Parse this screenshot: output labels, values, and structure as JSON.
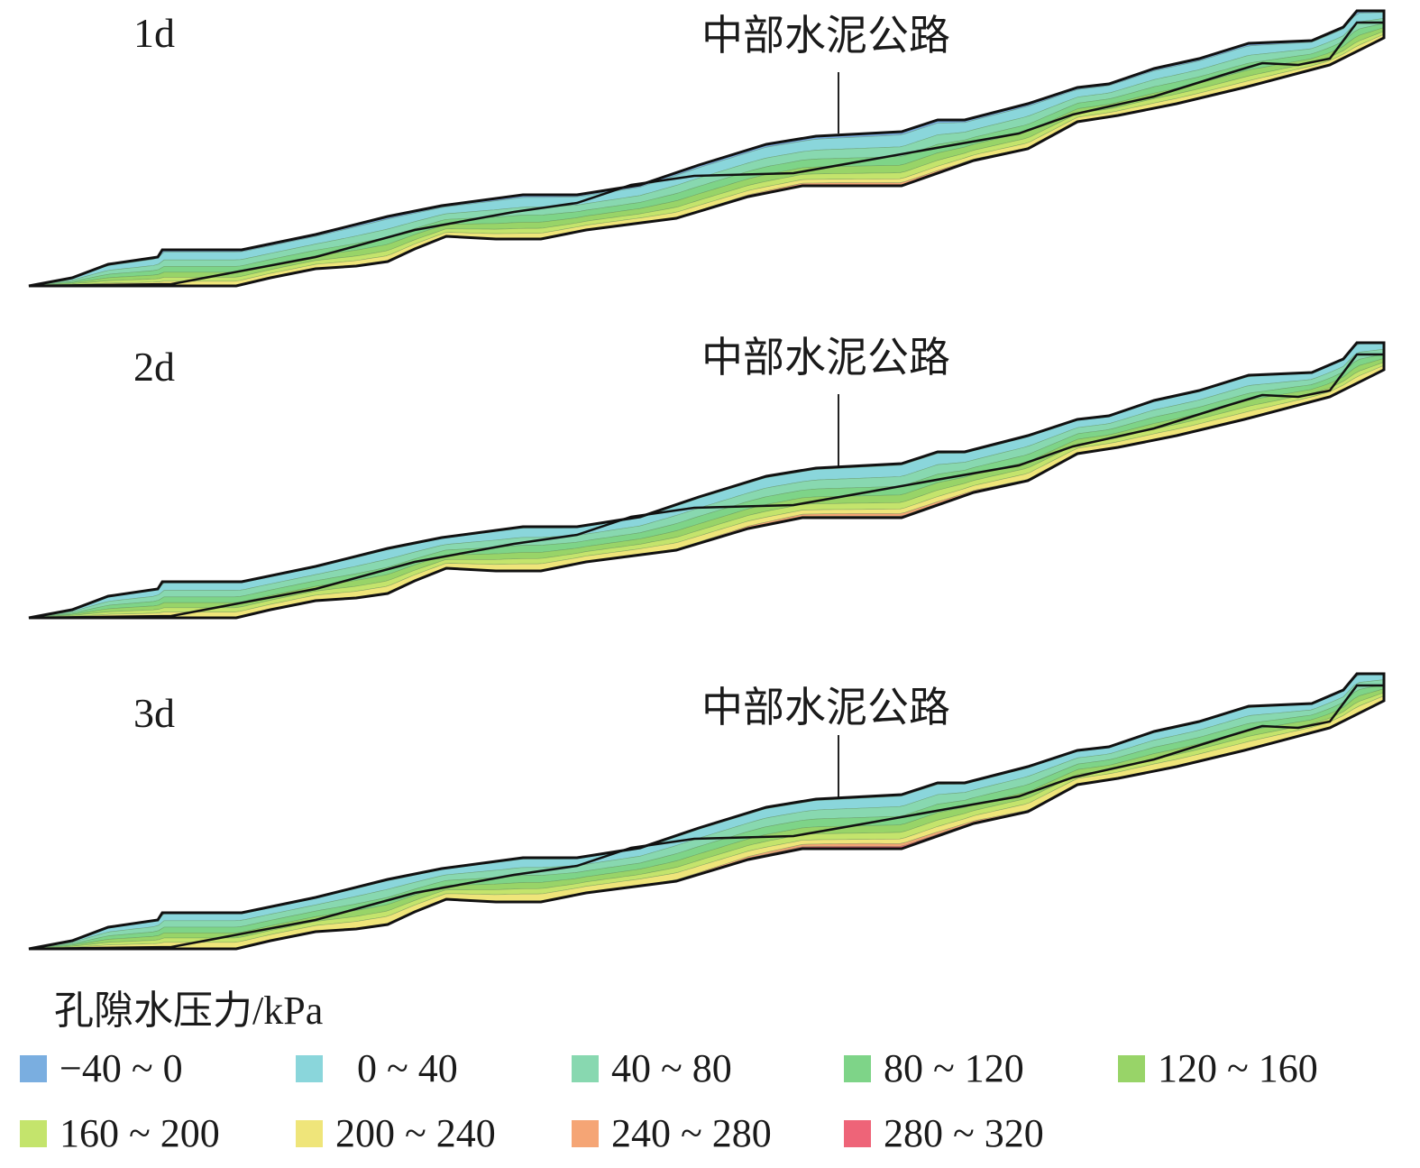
{
  "panels": [
    {
      "label": "1d",
      "road_label": "中部水泥公路"
    },
    {
      "label": "2d",
      "road_label": "中部水泥公路"
    },
    {
      "label": "3d",
      "road_label": "中部水泥公路"
    }
  ],
  "legend": {
    "title": "孔隙水压力/kPa",
    "items": [
      {
        "label": "−40 ~ 0",
        "color": "#7aaee0"
      },
      {
        "label": "0 ~ 40",
        "color": "#8ad6db"
      },
      {
        "label": "40 ~ 80",
        "color": "#88d8b0"
      },
      {
        "label": "80 ~ 120",
        "color": "#7ed488"
      },
      {
        "label": "120 ~ 160",
        "color": "#98d468"
      },
      {
        "label": "160 ~ 200",
        "color": "#c4e46c"
      },
      {
        "label": "200 ~ 240",
        "color": "#efe57a"
      },
      {
        "label": "240 ~ 280",
        "color": "#f5a575"
      },
      {
        "label": "280 ~ 320",
        "color": "#ee6478"
      }
    ]
  }
}
